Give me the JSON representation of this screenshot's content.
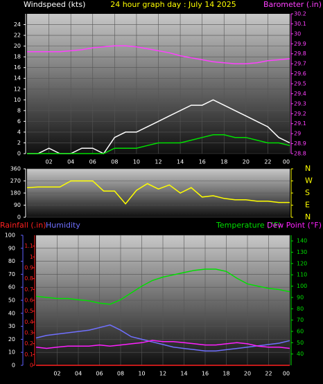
{
  "chart_data": [
    {
      "type": "line",
      "title": "24 hour graph day : July 14 2025",
      "y_label": "Windspeed (kts)",
      "y2_label": "Barometer (.in)",
      "x": [
        0,
        1,
        2,
        3,
        4,
        5,
        6,
        7,
        8,
        9,
        10,
        11,
        12,
        13,
        14,
        15,
        16,
        17,
        18,
        19,
        20,
        21,
        22,
        23,
        24
      ],
      "xlim": [
        0,
        24
      ],
      "xticks": [
        {
          "value": 2,
          "label": "02"
        },
        {
          "value": 4,
          "label": "04"
        },
        {
          "value": 6,
          "label": "06"
        },
        {
          "value": 8,
          "label": "08"
        },
        10,
        12,
        14,
        16,
        18,
        20,
        22,
        {
          "value": 24,
          "label": "00"
        }
      ],
      "ylim": [
        0,
        26
      ],
      "yticks": [
        0,
        2,
        4,
        6,
        8,
        10,
        12,
        14,
        16,
        18,
        20,
        22,
        24
      ],
      "y_color": "#ffffff",
      "y2lim": [
        28.8,
        30.2
      ],
      "y2ticks": [
        {
          "value": 28.8,
          "label": "28.8"
        },
        28.9,
        {
          "value": 29,
          "label": "29"
        },
        29.1,
        29.2,
        29.3,
        29.4,
        29.5,
        29.6,
        29.7,
        29.8,
        29.9,
        {
          "value": 30,
          "label": "30"
        },
        30.1,
        30.2
      ],
      "y2_color": "#ff40ff",
      "grid": true,
      "series": [
        {
          "color": "#ffffff",
          "values": [
            0,
            0,
            1,
            0,
            0,
            1,
            1,
            0,
            3,
            4,
            4,
            5,
            6,
            7,
            8,
            9,
            9,
            10,
            9,
            8,
            7,
            6,
            5,
            3,
            2
          ]
        },
        {
          "color": "#00e000",
          "values": [
            0,
            0,
            0,
            0,
            0,
            0,
            0,
            0,
            1,
            1,
            1,
            1.5,
            2,
            2,
            2,
            2.5,
            3,
            3.5,
            3.5,
            3,
            3,
            2.5,
            2,
            2,
            1.5
          ]
        },
        {
          "color": "#ff40ff",
          "axis": "y2",
          "values": [
            29.82,
            29.82,
            29.82,
            29.82,
            29.83,
            29.84,
            29.86,
            29.87,
            29.88,
            29.88,
            29.87,
            29.85,
            29.83,
            29.81,
            29.78,
            29.76,
            29.74,
            29.72,
            29.71,
            29.7,
            29.7,
            29.71,
            29.73,
            29.74,
            29.75
          ]
        }
      ]
    },
    {
      "type": "line",
      "x": [
        0,
        1,
        2,
        3,
        4,
        5,
        6,
        7,
        8,
        9,
        10,
        11,
        12,
        13,
        14,
        15,
        16,
        17,
        18,
        19,
        20,
        21,
        22,
        23,
        24
      ],
      "xlim": [
        0,
        24
      ],
      "ylim": [
        0,
        360
      ],
      "yticks": [
        0,
        90,
        180,
        270,
        360
      ],
      "y_color": "#ffffff",
      "y2lim": [
        0,
        360
      ],
      "y2ticks": [
        {
          "value": 0,
          "label": "N"
        },
        {
          "value": 90,
          "label": "E"
        },
        {
          "value": 180,
          "label": "S"
        },
        {
          "value": 270,
          "label": "W"
        },
        {
          "value": 360,
          "label": "N"
        }
      ],
      "y2_color": "#ffff00",
      "grid": true,
      "series": [
        {
          "color": "#ffff00",
          "values": [
            220,
            225,
            225,
            225,
            270,
            270,
            270,
            195,
            195,
            100,
            200,
            250,
            210,
            240,
            180,
            220,
            150,
            160,
            140,
            130,
            130,
            120,
            120,
            110,
            110
          ]
        }
      ]
    },
    {
      "type": "line",
      "x": [
        0,
        1,
        2,
        3,
        4,
        5,
        6,
        7,
        8,
        9,
        10,
        11,
        12,
        13,
        14,
        15,
        16,
        17,
        18,
        19,
        20,
        21,
        22,
        23,
        24
      ],
      "xlim": [
        0,
        24
      ],
      "xticks": [
        {
          "value": 2,
          "label": "02"
        },
        {
          "value": 4,
          "label": "04"
        },
        {
          "value": 6,
          "label": "06"
        },
        {
          "value": 8,
          "label": "08"
        },
        10,
        12,
        14,
        16,
        18,
        20,
        22,
        {
          "value": 24,
          "label": "00"
        }
      ],
      "ylim": [
        0,
        100
      ],
      "yticks": [
        0,
        10,
        20,
        30,
        40,
        50,
        60,
        70,
        80,
        90,
        100
      ],
      "y_color": "#6060ff",
      "y2lim": [
        30,
        145
      ],
      "y2ticks": [
        40,
        50,
        60,
        70,
        80,
        90,
        100,
        110,
        120,
        130,
        140
      ],
      "y2_color": "#00e000",
      "y3lim": [
        0,
        1.2
      ],
      "y3ticks": [
        0,
        0.1,
        0.2,
        0.3,
        0.4,
        0.5,
        0.6,
        0.7,
        0.8,
        0.9,
        1,
        1.1
      ],
      "y3_color": "#ff2020",
      "grid": true,
      "series": [
        {
          "name": "Rainfall (.in)",
          "color": "#ff2020",
          "axis": "y3",
          "values": [
            0,
            0,
            0,
            0,
            0,
            0,
            0,
            0,
            0,
            0,
            0,
            0,
            0,
            0,
            0,
            0,
            0,
            0,
            0,
            0,
            0,
            0,
            0,
            0,
            0
          ]
        },
        {
          "name": "Humidity",
          "color": "#7070ff",
          "values": [
            21,
            23,
            24,
            25,
            26,
            27,
            29,
            31,
            27,
            22,
            20,
            18,
            16,
            14,
            13,
            12,
            11,
            11,
            12,
            13,
            14,
            15,
            16,
            17,
            19
          ]
        },
        {
          "name": "Temperature (°F)",
          "color": "#00e000",
          "axis": "y2",
          "values": [
            91,
            90,
            89,
            89,
            88,
            87,
            85,
            84,
            88,
            94,
            100,
            105,
            108,
            110,
            112,
            114,
            115,
            115,
            113,
            107,
            102,
            100,
            98,
            97,
            95
          ]
        },
        {
          "name": "Dew Point (°F)",
          "color": "#ff20ff",
          "axis": "y2",
          "values": [
            46,
            45,
            46,
            47,
            47,
            47,
            48,
            47,
            48,
            49,
            50,
            52,
            51,
            51,
            50,
            49,
            48,
            48,
            49,
            50,
            49,
            47,
            46,
            46,
            45
          ]
        }
      ]
    }
  ]
}
